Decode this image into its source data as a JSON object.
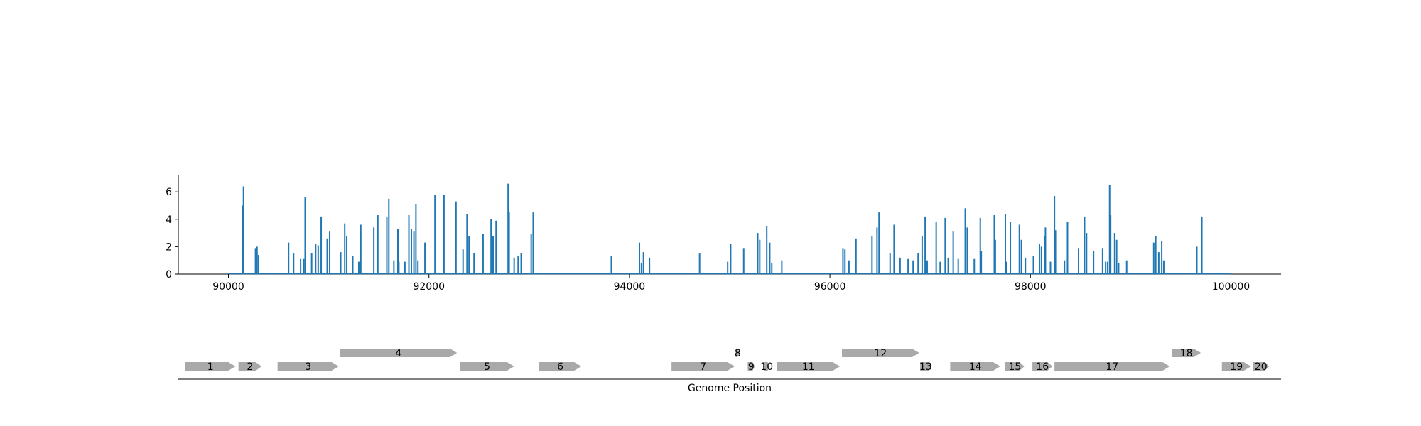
{
  "chart_data": [
    {
      "type": "line",
      "title": "",
      "xlabel": "",
      "ylabel": "",
      "xlim": [
        89500,
        100500
      ],
      "ylim": [
        0,
        7.2
      ],
      "x_ticks": [
        90000,
        92000,
        94000,
        96000,
        98000,
        100000
      ],
      "y_ticks": [
        0,
        2,
        4,
        6
      ],
      "baseline_range": [
        90000,
        100000
      ],
      "color": "#1f77b4",
      "grid": false,
      "spikes": [
        [
          90140,
          5.0
        ],
        [
          90150,
          6.4
        ],
        [
          90270,
          1.9
        ],
        [
          90285,
          2.0
        ],
        [
          90300,
          1.4
        ],
        [
          90600,
          2.3
        ],
        [
          90650,
          1.5
        ],
        [
          90720,
          1.1
        ],
        [
          90750,
          1.1
        ],
        [
          90765,
          5.6
        ],
        [
          90830,
          1.5
        ],
        [
          90870,
          2.2
        ],
        [
          90895,
          2.1
        ],
        [
          90925,
          4.2
        ],
        [
          90985,
          2.6
        ],
        [
          91010,
          3.1
        ],
        [
          91120,
          1.6
        ],
        [
          91160,
          3.7
        ],
        [
          91180,
          2.8
        ],
        [
          91240,
          1.3
        ],
        [
          91300,
          0.9
        ],
        [
          91320,
          3.6
        ],
        [
          91450,
          3.4
        ],
        [
          91490,
          4.3
        ],
        [
          91580,
          4.2
        ],
        [
          91600,
          5.5
        ],
        [
          91650,
          1.0
        ],
        [
          91690,
          3.3
        ],
        [
          91700,
          0.9
        ],
        [
          91760,
          0.9
        ],
        [
          91800,
          4.3
        ],
        [
          91825,
          3.3
        ],
        [
          91850,
          3.1
        ],
        [
          91870,
          5.1
        ],
        [
          91890,
          1.0
        ],
        [
          91960,
          2.3
        ],
        [
          92060,
          5.8
        ],
        [
          92150,
          5.8
        ],
        [
          92270,
          5.3
        ],
        [
          92340,
          1.8
        ],
        [
          92380,
          4.4
        ],
        [
          92400,
          2.8
        ],
        [
          92450,
          1.5
        ],
        [
          92540,
          2.9
        ],
        [
          92620,
          4.0
        ],
        [
          92640,
          2.8
        ],
        [
          92670,
          3.9
        ],
        [
          92790,
          6.6
        ],
        [
          92800,
          4.5
        ],
        [
          92850,
          1.2
        ],
        [
          92890,
          1.3
        ],
        [
          92920,
          1.5
        ],
        [
          93020,
          2.9
        ],
        [
          93040,
          4.5
        ],
        [
          93820,
          1.3
        ],
        [
          94100,
          2.3
        ],
        [
          94120,
          0.8
        ],
        [
          94140,
          1.6
        ],
        [
          94200,
          1.2
        ],
        [
          94700,
          1.5
        ],
        [
          94980,
          0.9
        ],
        [
          95010,
          2.2
        ],
        [
          95140,
          1.9
        ],
        [
          95280,
          3.0
        ],
        [
          95300,
          2.5
        ],
        [
          95370,
          3.5
        ],
        [
          95400,
          2.3
        ],
        [
          95420,
          0.8
        ],
        [
          95520,
          1.0
        ],
        [
          96130,
          1.9
        ],
        [
          96150,
          1.8
        ],
        [
          96190,
          1.0
        ],
        [
          96260,
          2.6
        ],
        [
          96420,
          2.8
        ],
        [
          96470,
          3.4
        ],
        [
          96490,
          4.5
        ],
        [
          96600,
          1.5
        ],
        [
          96640,
          3.6
        ],
        [
          96700,
          1.2
        ],
        [
          96780,
          1.1
        ],
        [
          96830,
          1.0
        ],
        [
          96880,
          1.5
        ],
        [
          96920,
          2.8
        ],
        [
          96950,
          4.2
        ],
        [
          96970,
          1.0
        ],
        [
          97060,
          3.8
        ],
        [
          97100,
          0.9
        ],
        [
          97150,
          4.1
        ],
        [
          97180,
          1.2
        ],
        [
          97230,
          3.1
        ],
        [
          97280,
          1.1
        ],
        [
          97350,
          4.8
        ],
        [
          97370,
          3.4
        ],
        [
          97440,
          1.1
        ],
        [
          97500,
          4.1
        ],
        [
          97510,
          1.7
        ],
        [
          97640,
          4.3
        ],
        [
          97650,
          2.5
        ],
        [
          97750,
          4.4
        ],
        [
          97760,
          0.9
        ],
        [
          97800,
          3.8
        ],
        [
          97890,
          3.6
        ],
        [
          97910,
          2.5
        ],
        [
          97950,
          1.2
        ],
        [
          98030,
          1.3
        ],
        [
          98090,
          2.2
        ],
        [
          98110,
          2.0
        ],
        [
          98140,
          2.8
        ],
        [
          98150,
          3.4
        ],
        [
          98200,
          0.9
        ],
        [
          98240,
          5.7
        ],
        [
          98250,
          3.2
        ],
        [
          98340,
          1.0
        ],
        [
          98370,
          3.8
        ],
        [
          98480,
          1.9
        ],
        [
          98540,
          4.2
        ],
        [
          98560,
          3.0
        ],
        [
          98630,
          1.7
        ],
        [
          98720,
          1.9
        ],
        [
          98750,
          0.9
        ],
        [
          98770,
          0.9
        ],
        [
          98790,
          6.5
        ],
        [
          98800,
          4.3
        ],
        [
          98840,
          3.0
        ],
        [
          98860,
          2.5
        ],
        [
          98880,
          0.8
        ],
        [
          98960,
          1.0
        ],
        [
          99230,
          2.3
        ],
        [
          99250,
          2.8
        ],
        [
          99280,
          1.6
        ],
        [
          99310,
          2.4
        ],
        [
          99330,
          1.0
        ],
        [
          99660,
          2.0
        ],
        [
          99710,
          4.2
        ]
      ]
    },
    {
      "type": "gene_map",
      "xlabel": "Genome Position",
      "xlim": [
        89500,
        100500
      ],
      "color": "#a9a9a9",
      "genes": [
        {
          "label": "1",
          "start": 89570,
          "end": 90070,
          "row": 0
        },
        {
          "label": "2",
          "start": 90100,
          "end": 90330,
          "row": 0
        },
        {
          "label": "3",
          "start": 90490,
          "end": 91100,
          "row": 0
        },
        {
          "label": "4",
          "start": 91110,
          "end": 92280,
          "row": 1
        },
        {
          "label": "5",
          "start": 92310,
          "end": 92850,
          "row": 0
        },
        {
          "label": "6",
          "start": 93100,
          "end": 93520,
          "row": 0
        },
        {
          "label": "7",
          "start": 94420,
          "end": 95050,
          "row": 0
        },
        {
          "label": "8",
          "start": 95060,
          "end": 95100,
          "row": 1
        },
        {
          "label": "9",
          "start": 95180,
          "end": 95250,
          "row": 0
        },
        {
          "label": "10",
          "start": 95340,
          "end": 95400,
          "row": 0
        },
        {
          "label": "11",
          "start": 95470,
          "end": 96100,
          "row": 0
        },
        {
          "label": "12",
          "start": 96120,
          "end": 96890,
          "row": 1
        },
        {
          "label": "13",
          "start": 96900,
          "end": 97010,
          "row": 0
        },
        {
          "label": "14",
          "start": 97200,
          "end": 97700,
          "row": 0
        },
        {
          "label": "15",
          "start": 97750,
          "end": 97940,
          "row": 0
        },
        {
          "label": "16",
          "start": 98020,
          "end": 98220,
          "row": 0
        },
        {
          "label": "17",
          "start": 98240,
          "end": 99390,
          "row": 0
        },
        {
          "label": "18",
          "start": 99410,
          "end": 99700,
          "row": 1
        },
        {
          "label": "19",
          "start": 99910,
          "end": 100200,
          "row": 0
        },
        {
          "label": "20",
          "start": 100220,
          "end": 100380,
          "row": 0
        }
      ]
    }
  ]
}
